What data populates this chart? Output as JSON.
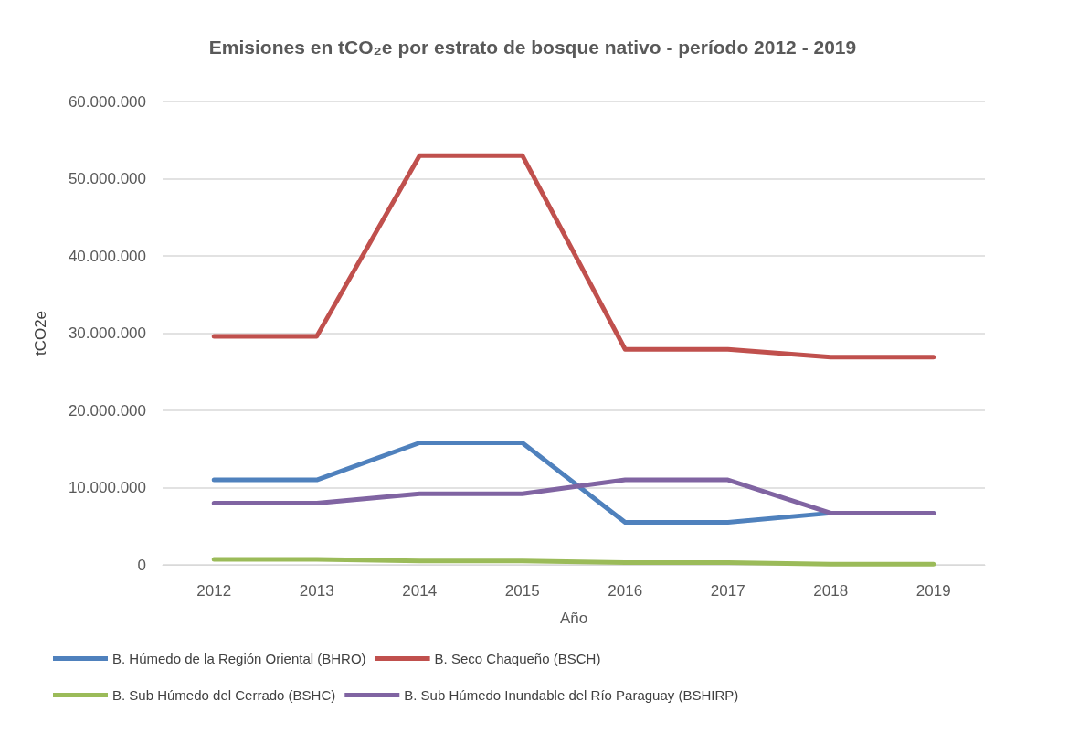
{
  "chart_data": {
    "type": "line",
    "title": "Emisiones en tCO₂e por estrato de bosque nativo - período 2012 - 2019",
    "xlabel": "Año",
    "ylabel": "tCO2e",
    "categories": [
      "2012",
      "2013",
      "2014",
      "2015",
      "2016",
      "2017",
      "2018",
      "2019"
    ],
    "series": [
      {
        "name": "B. Húmedo de la Región Oriental (BHRO)",
        "color": "#4f81bd",
        "values": [
          11000000,
          11000000,
          15800000,
          15800000,
          5500000,
          5500000,
          6700000,
          6700000
        ]
      },
      {
        "name": "B. Seco Chaqueño (BSCH)",
        "color": "#c0504d",
        "values": [
          29600000,
          29600000,
          53000000,
          53000000,
          27900000,
          27900000,
          26900000,
          26900000
        ]
      },
      {
        "name": "B. Sub Húmedo del Cerrado (BSHC)",
        "color": "#9bbb59",
        "values": [
          700000,
          700000,
          500000,
          500000,
          300000,
          300000,
          100000,
          100000
        ]
      },
      {
        "name": "B. Sub Húmedo Inundable del Río Paraguay (BSHIRP)",
        "color": "#8064a2",
        "values": [
          8000000,
          8000000,
          9200000,
          9200000,
          11000000,
          11000000,
          6700000,
          6700000
        ]
      }
    ],
    "ylim": [
      0,
      60000000
    ],
    "yticks": [
      {
        "value": 0,
        "label": "0"
      },
      {
        "value": 10000000,
        "label": "10.000.000"
      },
      {
        "value": 20000000,
        "label": "20.000.000"
      },
      {
        "value": 30000000,
        "label": "30.000.000"
      },
      {
        "value": 40000000,
        "label": "40.000.000"
      },
      {
        "value": 50000000,
        "label": "50.000.000"
      },
      {
        "value": 60000000,
        "label": "60.000.000"
      }
    ],
    "grid": "y",
    "legend": "bottom",
    "marker": "none",
    "line_style": "solid"
  }
}
